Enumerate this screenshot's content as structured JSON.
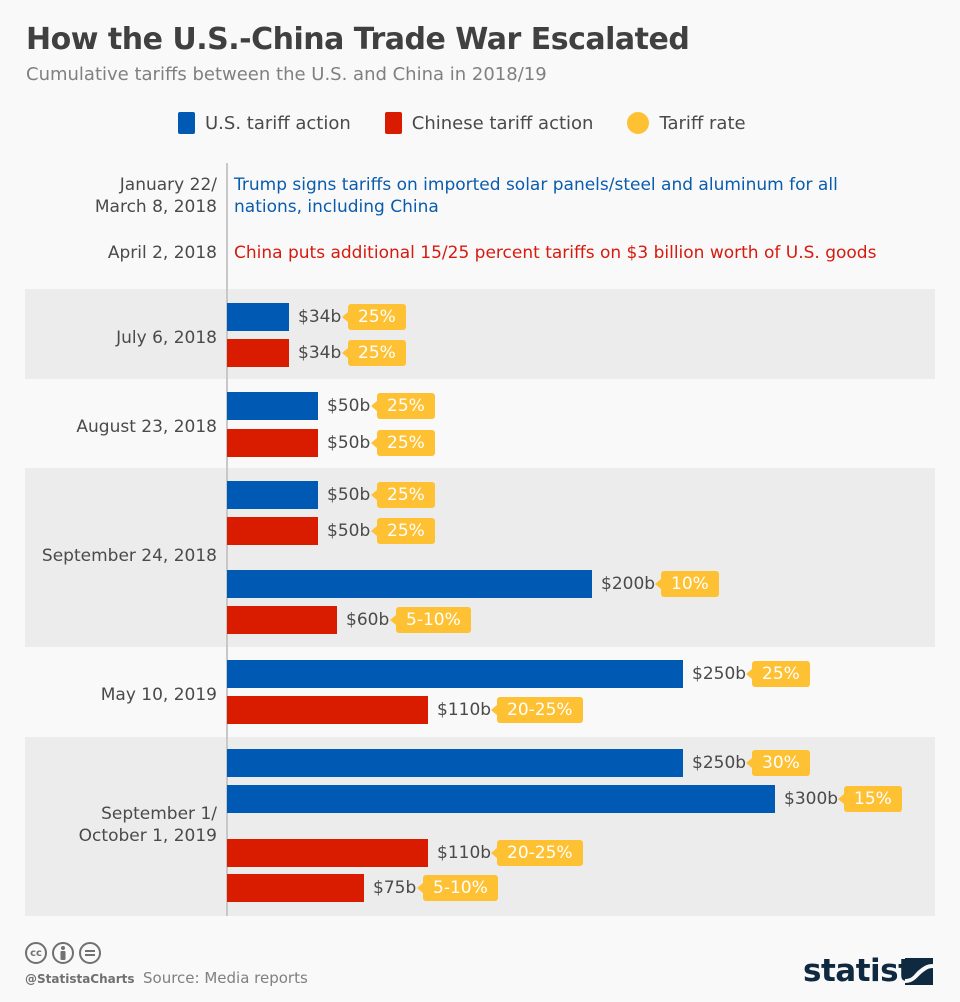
{
  "header": {
    "title": "How the U.S.-China Trade War Escalated",
    "subtitle": "Cumulative tariffs between the U.S. and China in 2018/19"
  },
  "legend": [
    {
      "label": "U.S. tariff action",
      "color": "#0059b2",
      "shape": "square"
    },
    {
      "label": "Chinese tariff action",
      "color": "#d91c00",
      "shape": "square"
    },
    {
      "label": "Tariff rate",
      "color": "#fec134",
      "shape": "circle"
    }
  ],
  "events": [
    {
      "date": [
        "January 22/",
        "March 8, 2018"
      ],
      "text": [
        "Trump signs tariffs on imported solar panels/steel and aluminum for all",
        "nations, including China"
      ],
      "color": "#0a5cad"
    },
    {
      "date": [
        "April 2, 2018"
      ],
      "text": [
        "China puts additional 15/25 percent tariffs on $3 billion worth of U.S. goods"
      ],
      "color": "#d61a0d"
    }
  ],
  "chart_data": {
    "type": "bar",
    "orientation": "horizontal",
    "title": "How the U.S.-China Trade War Escalated",
    "subtitle": "Cumulative tariffs between the U.S. and China in 2018/19",
    "xlabel": "",
    "ylabel": "",
    "xlim": [
      0,
      400
    ],
    "grid": false,
    "legend_position": "top",
    "value_unit": "billion USD",
    "groups": [
      {
        "date": [
          "July 6, 2018"
        ],
        "shaded": true,
        "bars": [
          {
            "side": "U.S.",
            "value": 34,
            "label": "$34b",
            "rate": "25%"
          },
          {
            "side": "China",
            "value": 34,
            "label": "$34b",
            "rate": "25%"
          }
        ]
      },
      {
        "date": [
          "August 23, 2018"
        ],
        "shaded": false,
        "bars": [
          {
            "side": "U.S.",
            "value": 50,
            "label": "$50b",
            "rate": "25%"
          },
          {
            "side": "China",
            "value": 50,
            "label": "$50b",
            "rate": "25%"
          }
        ]
      },
      {
        "date": [
          "September 24, 2018"
        ],
        "shaded": true,
        "bars": [
          {
            "side": "U.S.",
            "value": 50,
            "label": "$50b",
            "rate": "25%"
          },
          {
            "side": "China",
            "value": 50,
            "label": "$50b",
            "rate": "25%"
          },
          {
            "side": "U.S.",
            "value": 200,
            "label": "$200b",
            "rate": "10%"
          },
          {
            "side": "China",
            "value": 60,
            "label": "$60b",
            "rate": "5-10%"
          }
        ]
      },
      {
        "date": [
          "May 10, 2019"
        ],
        "shaded": false,
        "bars": [
          {
            "side": "U.S.",
            "value": 250,
            "label": "$250b",
            "rate": "25%"
          },
          {
            "side": "China",
            "value": 110,
            "label": "$110b",
            "rate": "20-25%"
          }
        ]
      },
      {
        "date": [
          "September 1/",
          "October 1, 2019"
        ],
        "shaded": true,
        "bars": [
          {
            "side": "U.S.",
            "value": 250,
            "label": "$250b",
            "rate": "30%"
          },
          {
            "side": "U.S.",
            "value": 300,
            "label": "$300b",
            "rate": "15%"
          },
          {
            "side": "China",
            "value": 110,
            "label": "$110b",
            "rate": "20-25%"
          },
          {
            "side": "China",
            "value": 75,
            "label": "$75b",
            "rate": "5-10%"
          }
        ]
      }
    ]
  },
  "footer": {
    "license_icons": [
      "creative-commons-icon",
      "attribution-icon",
      "no-derivatives-icon"
    ],
    "cc_text": "cc",
    "handle": "@StatistaCharts",
    "source": "Source: Media reports",
    "brand": "statista"
  }
}
